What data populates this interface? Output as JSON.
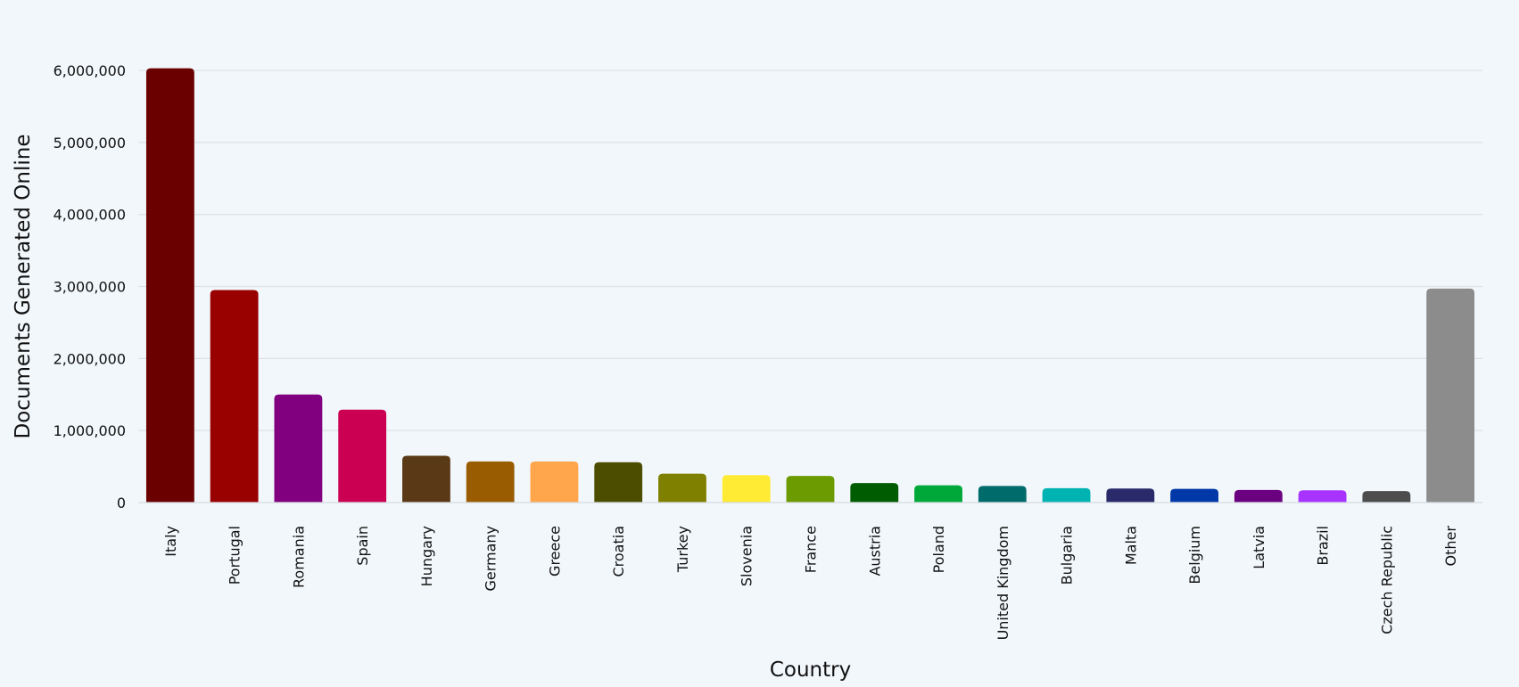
{
  "chart_data": {
    "type": "bar",
    "title": "",
    "xlabel": "Country",
    "ylabel": "Documents Generated Online",
    "ylim": [
      0,
      6000000
    ],
    "yticks": [
      0,
      1000000,
      2000000,
      3000000,
      4000000,
      5000000,
      6000000
    ],
    "ytick_labels": [
      "0",
      "1,000,000",
      "2,000,000",
      "3,000,000",
      "4,000,000",
      "5,000,000",
      "6,000,000"
    ],
    "grid": true,
    "legend": "none",
    "categories": [
      "Italy",
      "Portugal",
      "Romania",
      "Spain",
      "Hungary",
      "Germany",
      "Greece",
      "Croatia",
      "Turkey",
      "Slovenia",
      "France",
      "Austria",
      "Poland",
      "United Kingdom",
      "Bulgaria",
      "Malta",
      "Belgium",
      "Latvia",
      "Brazil",
      "Czech Republic",
      "Other"
    ],
    "values": [
      6030000,
      2950000,
      1500000,
      1290000,
      650000,
      570000,
      570000,
      560000,
      400000,
      380000,
      370000,
      270000,
      240000,
      230000,
      200000,
      195000,
      190000,
      175000,
      170000,
      160000,
      2970000
    ],
    "colors": [
      "#6b0000",
      "#990000",
      "#800080",
      "#cc0052",
      "#5a3a16",
      "#995c00",
      "#ffa64d",
      "#4d4d00",
      "#808000",
      "#ffeb33",
      "#6b9b00",
      "#005c00",
      "#00a83a",
      "#006b6b",
      "#00b3b3",
      "#2a2a6b",
      "#0038a8",
      "#6b0080",
      "#a833ff",
      "#4d4d4d",
      "#8c8c8c"
    ]
  }
}
